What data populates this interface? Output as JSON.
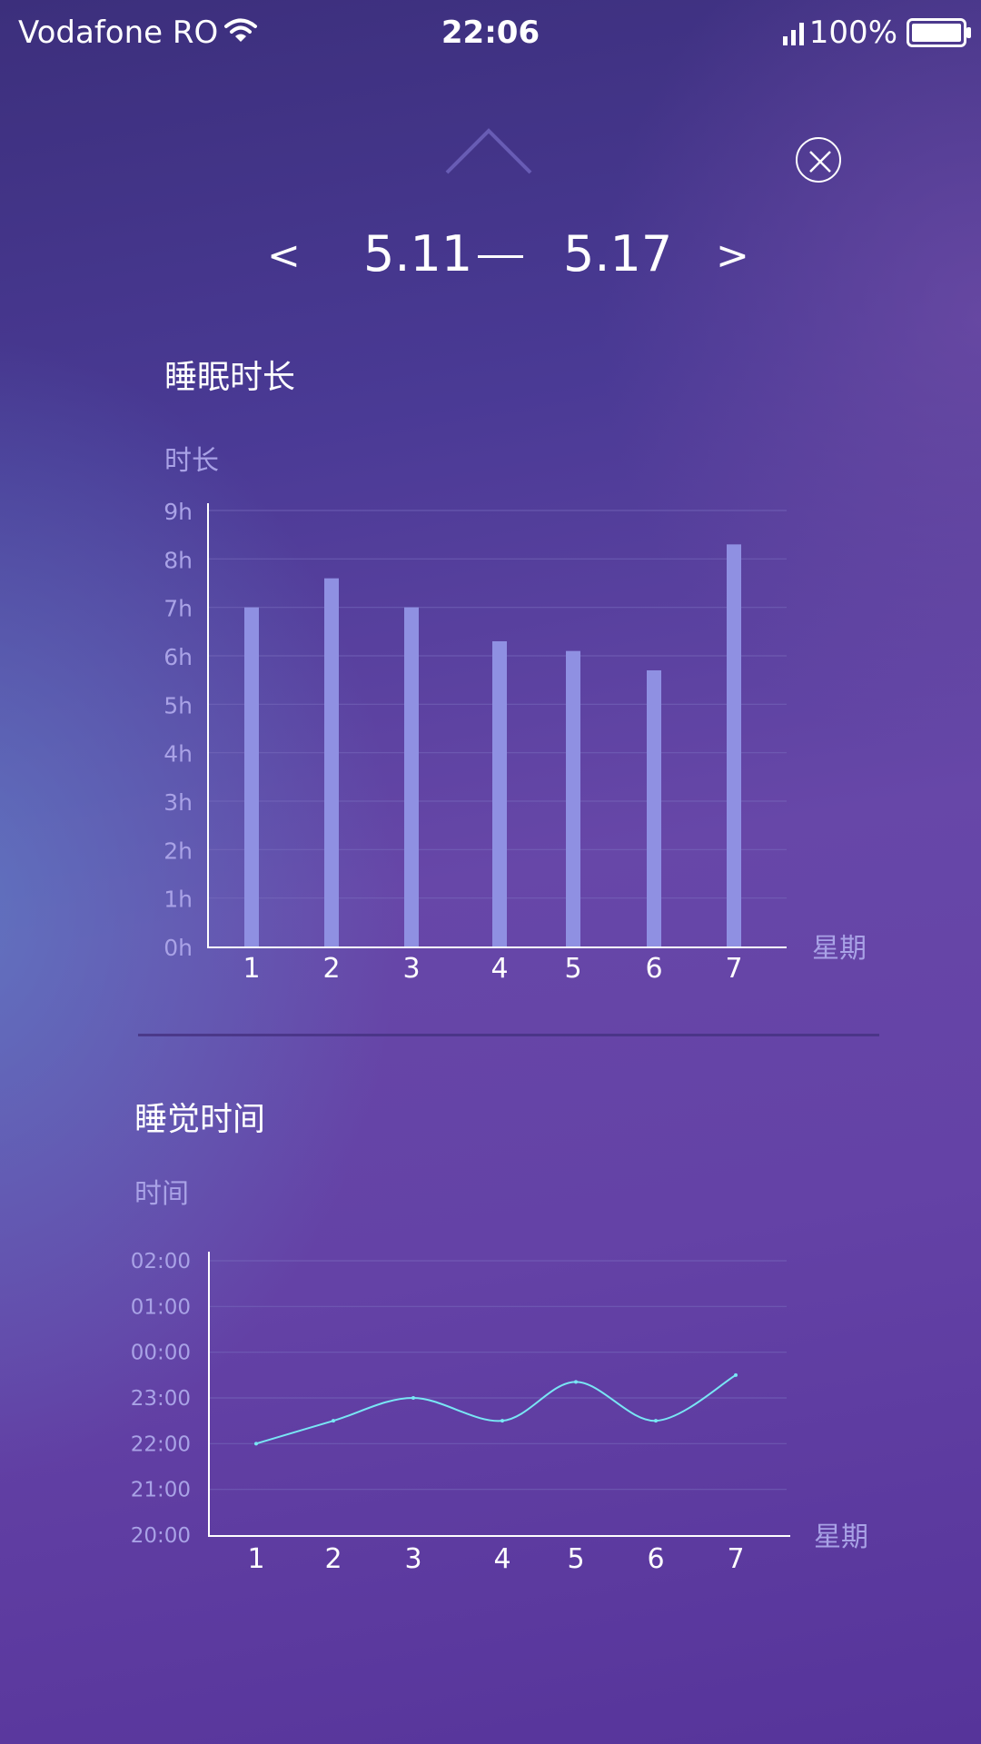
{
  "status_bar": {
    "carrier": "Vodafone RO",
    "time": "22:06",
    "battery": "100%"
  },
  "header": {
    "prev": "<",
    "next": ">",
    "start_date": "5.11",
    "end_date": "5.17"
  },
  "colors": {
    "bar": "#8f90e2",
    "line": "#79e6f4",
    "tick_label": "#a9a2e6",
    "grid": "#7a6fc0"
  },
  "sections": {
    "duration": {
      "title": "睡眠时长",
      "y_caption": "时长"
    },
    "bedtime": {
      "title": "睡觉时间",
      "y_caption": "时间"
    }
  },
  "chart_data": [
    {
      "type": "bar",
      "title": "睡眠时长",
      "ylabel": "时长",
      "xlabel": "星期",
      "categories": [
        "1",
        "2",
        "3",
        "4",
        "5",
        "6",
        "7"
      ],
      "values": [
        7.0,
        7.6,
        7.0,
        6.3,
        6.1,
        5.7,
        8.3
      ],
      "ylim": [
        0,
        9
      ],
      "yticks": [
        "0h",
        "1h",
        "2h",
        "3h",
        "4h",
        "5h",
        "6h",
        "7h",
        "8h",
        "9h"
      ],
      "grid": true
    },
    {
      "type": "line",
      "title": "睡觉时间",
      "ylabel": "时间",
      "xlabel": "星期",
      "categories": [
        "1",
        "2",
        "3",
        "4",
        "5",
        "6",
        "7"
      ],
      "values": [
        22.0,
        22.5,
        23.0,
        22.5,
        23.35,
        22.5,
        23.5
      ],
      "ylim": [
        20,
        26
      ],
      "yticks": [
        "20:00",
        "21:00",
        "22:00",
        "23:00",
        "00:00",
        "01:00",
        "02:00"
      ],
      "grid": true
    }
  ]
}
